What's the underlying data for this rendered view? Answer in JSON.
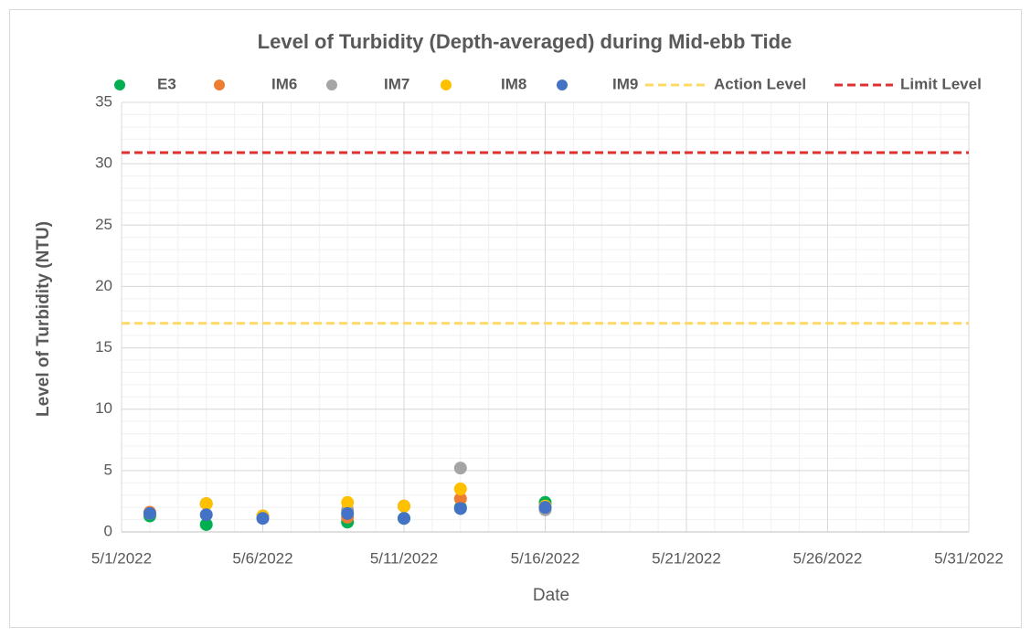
{
  "chart_data": {
    "type": "scatter",
    "title": "Level of Turbidity (Depth-averaged) during Mid-ebb Tide",
    "xlabel": "Date",
    "ylabel": "Level of Turbidity (NTU)",
    "x": [
      "5/2/2022",
      "5/4/2022",
      "5/6/2022",
      "5/9/2022",
      "5/11/2022",
      "5/13/2022",
      "5/16/2022"
    ],
    "series": [
      {
        "name": "E3",
        "color": "#00b050",
        "values": [
          1.3,
          0.6,
          1.2,
          0.8,
          1.1,
          2.0,
          2.4
        ]
      },
      {
        "name": "IM6",
        "color": "#ed7d31",
        "values": [
          1.6,
          2.3,
          1.3,
          1.2,
          2.1,
          2.7,
          2.0
        ]
      },
      {
        "name": "IM7",
        "color": "#a5a5a5",
        "values": [
          1.5,
          2.3,
          1.3,
          1.8,
          2.1,
          5.2,
          1.8
        ]
      },
      {
        "name": "IM8",
        "color": "#ffc000",
        "values": [
          1.5,
          2.3,
          1.3,
          2.4,
          2.1,
          3.5,
          2.1
        ]
      },
      {
        "name": "IM9",
        "color": "#4472c4",
        "values": [
          1.5,
          1.4,
          1.1,
          1.5,
          1.1,
          1.9,
          2.0
        ]
      }
    ],
    "lines": [
      {
        "name": "Action Level",
        "color": "#ffd966",
        "value": 17
      },
      {
        "name": "Limit Level",
        "color": "#e03030",
        "value": 30.9
      }
    ],
    "xlim": [
      "5/1/2022",
      "5/31/2022"
    ],
    "xticks": [
      "5/1/2022",
      "5/6/2022",
      "5/11/2022",
      "5/16/2022",
      "5/21/2022",
      "5/26/2022",
      "5/31/2022"
    ],
    "ylim": [
      0,
      35
    ],
    "yticks": [
      0,
      5,
      10,
      15,
      20,
      25,
      30,
      35
    ],
    "grid": true,
    "minor_grid": true
  }
}
